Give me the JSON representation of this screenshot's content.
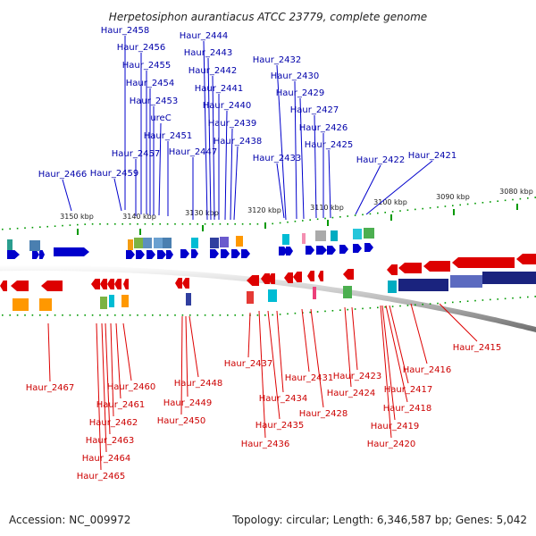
{
  "title": "Herpetosiphon aurantiacus ATCC 23779, complete genome",
  "accession": "Accession: NC_009972",
  "summary": "Topology: circular; Length: 6,346,587 bp; Genes: 5,042",
  "colors": {
    "forward": "#0000cc",
    "reverse": "#dd0000",
    "backbone": "#888888",
    "tick_forward": "#009900",
    "tick_reverse": "#009900"
  },
  "scale_labels": [
    "3150 kbp",
    "3140 kbp",
    "3130 kbp",
    "3120 kbp",
    "3110 kbp",
    "3100 kbp",
    "3090 kbp",
    "3080 kbp"
  ],
  "top_genes": [
    "Haur_2458",
    "Haur_2456",
    "Haur_2455",
    "Haur_2454",
    "Haur_2453",
    "ureC",
    "Haur_2451",
    "Haur_2457",
    "Haur_2459",
    "Haur_2466",
    "Haur_2444",
    "Haur_2443",
    "Haur_2442",
    "Haur_2441",
    "Haur_2440",
    "Haur_2439",
    "Haur_2438",
    "Haur_2447",
    "Haur_2432",
    "Haur_2430",
    "Haur_2429",
    "Haur_2427",
    "Haur_2426",
    "Haur_2425",
    "Haur_2433",
    "Haur_2422",
    "Haur_2421"
  ],
  "bottom_genes": [
    "Haur_2467",
    "Haur_2460",
    "Haur_2461",
    "Haur_2462",
    "Haur_2463",
    "Haur_2464",
    "Haur_2465",
    "Haur_2448",
    "Haur_2449",
    "Haur_2450",
    "Haur_2437",
    "Haur_2434",
    "Haur_2435",
    "Haur_2436",
    "Haur_2431",
    "Haur_2428",
    "Haur_2423",
    "Haur_2424",
    "Haur_2417",
    "Haur_2418",
    "Haur_2419",
    "Haur_2420",
    "Haur_2416",
    "Haur_2415"
  ]
}
